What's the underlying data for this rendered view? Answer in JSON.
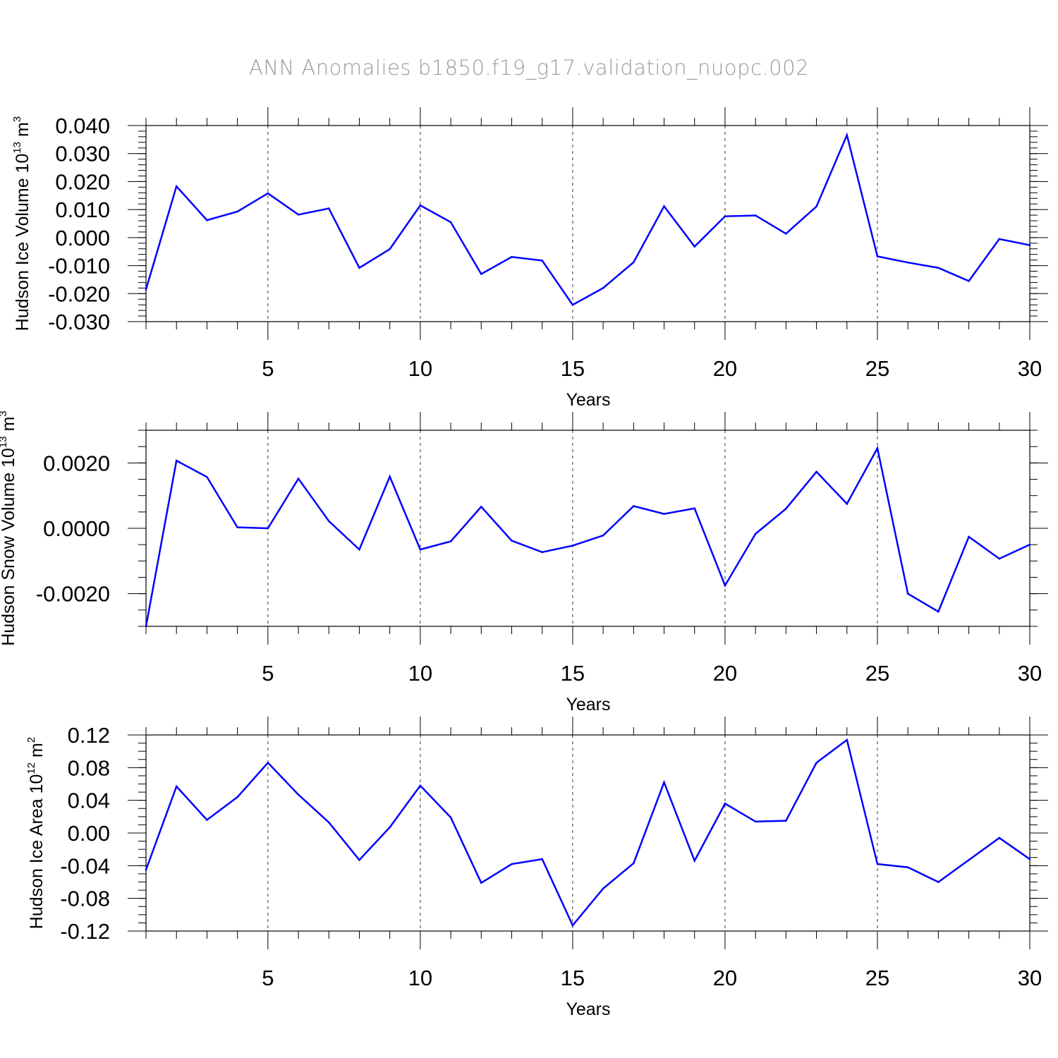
{
  "title": "ANN Anomalies b1850.f19_g17.validation_nuopc.002",
  "chart_data": [
    {
      "type": "line",
      "title": "ANN Anomalies b1850.f19_g17.validation_nuopc.002",
      "ylabel_main": "Hudson Ice Volume 10",
      "ylabel_exp": "13",
      "ylabel_unit": " m",
      "ylabel_unit_exp": "3",
      "xlabel": "Years",
      "xlim": [
        1,
        30
      ],
      "ylim": [
        -0.03,
        0.04
      ],
      "yticks": [
        -0.03,
        -0.02,
        -0.01,
        0.0,
        0.01,
        0.02,
        0.03,
        0.04
      ],
      "yticklabels": [
        "-0.030",
        "-0.020",
        "-0.010",
        "0.000",
        "0.010",
        "0.020",
        "0.030",
        "0.040"
      ],
      "yminor_step": 0.002,
      "xticks": [
        5,
        10,
        15,
        20,
        25,
        30
      ],
      "xticklabels": [
        "5",
        "10",
        "15",
        "20",
        "25",
        "30"
      ],
      "grid_x": [
        5,
        10,
        15,
        20,
        25
      ],
      "series": [
        {
          "name": "Hudson Ice Volume",
          "color": "#0000ff",
          "x": [
            1,
            2,
            3,
            4,
            5,
            6,
            7,
            8,
            9,
            10,
            11,
            12,
            13,
            14,
            15,
            16,
            17,
            18,
            19,
            20,
            21,
            22,
            23,
            24,
            25,
            26,
            27,
            28,
            29,
            30
          ],
          "values": [
            -0.0185,
            0.0183,
            0.0062,
            0.0093,
            0.0158,
            0.0082,
            0.0104,
            -0.0108,
            -0.0041,
            0.0115,
            0.0055,
            -0.013,
            -0.0069,
            -0.0082,
            -0.024,
            -0.018,
            -0.0088,
            0.0112,
            -0.0032,
            0.0076,
            0.0079,
            0.0014,
            0.0111,
            0.0366,
            -0.0067,
            -0.0089,
            -0.0108,
            -0.0155,
            -0.0005,
            -0.0027
          ]
        }
      ]
    },
    {
      "type": "line",
      "ylabel_main": "Hudson Snow Volume 10",
      "ylabel_exp": "13",
      "ylabel_unit": " m",
      "ylabel_unit_exp": "3",
      "xlabel": "Years",
      "xlim": [
        1,
        30
      ],
      "ylim": [
        -0.003,
        0.003
      ],
      "yticks": [
        -0.002,
        0.0,
        0.002
      ],
      "yticklabels": [
        "-0.0020",
        "0.0000",
        "0.0020"
      ],
      "yminor_step": 0.0005,
      "xticks": [
        5,
        10,
        15,
        20,
        25,
        30
      ],
      "xticklabels": [
        "5",
        "10",
        "15",
        "20",
        "25",
        "30"
      ],
      "grid_x": [
        5,
        10,
        15,
        20,
        25
      ],
      "series": [
        {
          "name": "Hudson Snow Volume",
          "color": "#0000ff",
          "x": [
            1,
            2,
            3,
            4,
            5,
            6,
            7,
            8,
            9,
            10,
            11,
            12,
            13,
            14,
            15,
            16,
            17,
            18,
            19,
            20,
            21,
            22,
            23,
            24,
            25,
            26,
            27,
            28,
            29,
            30
          ],
          "values": [
            -0.003,
            0.00207,
            0.00157,
            3e-05,
            0.0,
            0.00152,
            0.00022,
            -0.00065,
            0.00158,
            -0.00065,
            -0.0004,
            0.00066,
            -0.00038,
            -0.00073,
            -0.00053,
            -0.00022,
            0.00068,
            0.00044,
            0.00061,
            -0.00175,
            -0.00017,
            0.0006,
            0.00173,
            0.00075,
            0.00245,
            -0.002,
            -0.00255,
            -0.00026,
            -0.00093,
            -0.0005
          ]
        }
      ]
    },
    {
      "type": "line",
      "ylabel_main": "Hudson Ice Area 10",
      "ylabel_exp": "12",
      "ylabel_unit": " m",
      "ylabel_unit_exp": "2",
      "xlabel": "Years",
      "xlim": [
        1,
        30
      ],
      "ylim": [
        -0.12,
        0.12
      ],
      "yticks": [
        -0.12,
        -0.08,
        -0.04,
        0.0,
        0.04,
        0.08,
        0.12
      ],
      "yticklabels": [
        "-0.12",
        "-0.08",
        "-0.04",
        "0.00",
        "0.04",
        "0.08",
        "0.12"
      ],
      "yminor_step": 0.01,
      "xticks": [
        5,
        10,
        15,
        20,
        25,
        30
      ],
      "xticklabels": [
        "5",
        "10",
        "15",
        "20",
        "25",
        "30"
      ],
      "grid_x": [
        5,
        10,
        15,
        20,
        25
      ],
      "series": [
        {
          "name": "Hudson Ice Area",
          "color": "#0000ff",
          "x": [
            1,
            2,
            3,
            4,
            5,
            6,
            7,
            8,
            9,
            10,
            11,
            12,
            13,
            14,
            15,
            16,
            17,
            18,
            19,
            20,
            21,
            22,
            23,
            24,
            25,
            26,
            27,
            28,
            29,
            30
          ],
          "values": [
            -0.045,
            0.057,
            0.016,
            0.044,
            0.086,
            0.047,
            0.013,
            -0.033,
            0.007,
            0.058,
            0.019,
            -0.061,
            -0.038,
            -0.032,
            -0.113,
            -0.068,
            -0.037,
            0.062,
            -0.034,
            0.036,
            0.014,
            0.015,
            0.086,
            0.114,
            -0.038,
            -0.042,
            -0.06,
            -0.033,
            -0.006,
            -0.032
          ]
        }
      ]
    }
  ]
}
